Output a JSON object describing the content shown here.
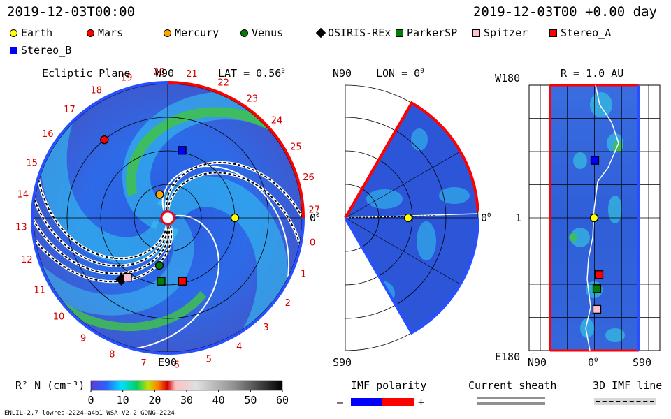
{
  "header": {
    "time_left": "2019-12-03T00:00",
    "time_right": "2019-12-03T00 +0.00 day"
  },
  "legend": [
    {
      "name": "Earth",
      "shape": "circle",
      "color": "#ffff00"
    },
    {
      "name": "Mars",
      "shape": "circle",
      "color": "#ff0000"
    },
    {
      "name": "Mercury",
      "shape": "circle",
      "color": "#ffa500"
    },
    {
      "name": "Venus",
      "shape": "circle",
      "color": "#008000"
    },
    {
      "name": "OSIRIS-REx",
      "shape": "diamond",
      "color": "#000000"
    },
    {
      "name": "ParkerSP",
      "shape": "square",
      "color": "#008000"
    },
    {
      "name": "Spitzer",
      "shape": "square",
      "color": "#ffc0cb"
    },
    {
      "name": "Stereo_A",
      "shape": "square",
      "color": "#ff0000"
    },
    {
      "name": "Stereo_B",
      "shape": "square",
      "color": "#0000ff"
    }
  ],
  "chart_data": [
    {
      "type": "heatmap",
      "panel": "ecliptic",
      "title": "Ecliptic Plane",
      "top_label": "W90",
      "bottom_label": "E90",
      "right_label": "0",
      "lat_label": "LAT = 0.56",
      "carrington_ticks": [
        "20",
        "21",
        "22",
        "23",
        "24",
        "25",
        "26",
        "27",
        "0",
        "1",
        "2",
        "3",
        "4",
        "5",
        "6",
        "7",
        "8",
        "9",
        "10",
        "11",
        "12",
        "13",
        "14",
        "15",
        "16",
        "17",
        "18",
        "19"
      ],
      "bodies": [
        {
          "name": "Earth",
          "r_au": 1.0,
          "angle_deg": 0
        },
        {
          "name": "Mars",
          "r_au": 1.5,
          "angle_deg": 129
        },
        {
          "name": "Mercury",
          "r_au": 0.37,
          "angle_deg": 109
        },
        {
          "name": "Venus",
          "r_au": 0.72,
          "angle_deg": -100
        },
        {
          "name": "OSIRIS-REx",
          "r_au": 1.15,
          "angle_deg": -127
        },
        {
          "name": "ParkerSP",
          "r_au": 0.95,
          "angle_deg": -96
        },
        {
          "name": "Spitzer",
          "r_au": 1.07,
          "angle_deg": -124
        },
        {
          "name": "Stereo_A",
          "r_au": 0.97,
          "angle_deg": -77
        },
        {
          "name": "Stereo_B",
          "r_au": 1.03,
          "angle_deg": 78
        }
      ]
    },
    {
      "type": "heatmap",
      "panel": "meridional",
      "top_left_label": "N90",
      "lon_label": "LON = 0",
      "bottom_label": "S90",
      "right_label": "0",
      "bodies": [
        {
          "name": "Earth",
          "r_au": 1.0,
          "lat_deg": 0
        }
      ]
    },
    {
      "type": "heatmap",
      "panel": "sphere",
      "title": "R = 1.0 AU",
      "y_top": "W180",
      "y_mid": "1",
      "y_bottom": "E180",
      "x_left": "N90",
      "x_mid": "0",
      "x_right": "S90",
      "bodies": [
        {
          "name": "Stereo_B",
          "lat_deg": 5,
          "lon_deg": 78
        },
        {
          "name": "Earth",
          "lat_deg": 0,
          "lon_deg": 0
        },
        {
          "name": "Stereo_A",
          "lat_deg": -7,
          "lon_deg": -77
        },
        {
          "name": "ParkerSP",
          "lat_deg": -4,
          "lon_deg": -96
        },
        {
          "name": "Spitzer",
          "lat_deg": -4,
          "lon_deg": -124
        }
      ]
    },
    {
      "type": "colorbar",
      "label": "R² N (cm⁻³)",
      "ticks": [
        0,
        10,
        20,
        30,
        40,
        50,
        60
      ],
      "range": [
        0,
        60
      ]
    }
  ],
  "footer": {
    "imf_polarity": "IMF polarity",
    "imf_minus": "–",
    "imf_plus": "+",
    "current_sheath": "Current sheath",
    "imf_line": "3D IMF line",
    "model_info": "ENLIL-2.7 lowres-2224-a4b1 WSA_V2.2 GONG-2224"
  }
}
